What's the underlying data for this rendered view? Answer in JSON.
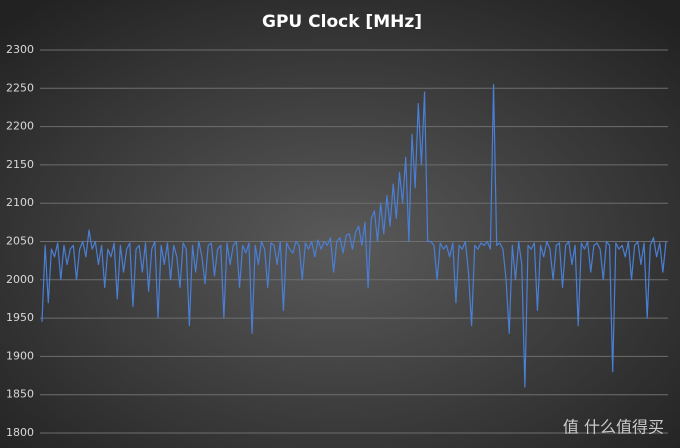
{
  "chart_data": {
    "type": "line",
    "title": "GPU Clock [MHz]",
    "watermark": "值 什么值得买",
    "color": "#4a7fd6",
    "grid": true,
    "ylim": [
      1800,
      2300
    ],
    "yticks": [
      1800,
      1850,
      1900,
      1950,
      2000,
      2050,
      2100,
      2150,
      2200,
      2250,
      2300
    ],
    "values": [
      1945,
      2045,
      1970,
      2040,
      2030,
      2048,
      2000,
      2045,
      2020,
      2040,
      2045,
      2000,
      2040,
      2050,
      2030,
      2065,
      2040,
      2050,
      2020,
      2045,
      1990,
      2040,
      2030,
      2048,
      1975,
      2045,
      2010,
      2040,
      2048,
      1965,
      2040,
      2045,
      2010,
      2048,
      1985,
      2040,
      2050,
      1950,
      2045,
      2020,
      2048,
      2000,
      2045,
      2030,
      1990,
      2048,
      2040,
      1940,
      2045,
      2010,
      2050,
      2030,
      1995,
      2045,
      2048,
      2005,
      2040,
      2045,
      1950,
      2048,
      2020,
      2045,
      2050,
      1990,
      2045,
      2035,
      2048,
      1930,
      2045,
      2020,
      2050,
      2040,
      1990,
      2048,
      2045,
      2020,
      2050,
      1960,
      2048,
      2040,
      2035,
      2050,
      2045,
      2000,
      2048,
      2040,
      2050,
      2030,
      2052,
      2040,
      2050,
      2045,
      2055,
      2010,
      2050,
      2055,
      2035,
      2058,
      2060,
      2040,
      2062,
      2070,
      2045,
      2075,
      1990,
      2080,
      2090,
      2050,
      2100,
      2060,
      2110,
      2070,
      2125,
      2080,
      2140,
      2100,
      2160,
      2050,
      2190,
      2120,
      2230,
      2150,
      2245,
      2050,
      2050,
      2045,
      2000,
      2048,
      2040,
      2045,
      2030,
      2048,
      1970,
      2045,
      2040,
      2050,
      2010,
      1940,
      2045,
      2040,
      2048,
      2045,
      2050,
      2040,
      2255,
      2045,
      2048,
      2040,
      2000,
      1930,
      2045,
      2000,
      2050,
      2020,
      1860,
      2045,
      2040,
      2048,
      1960,
      2045,
      2030,
      2050,
      2040,
      2000,
      2045,
      2048,
      1990,
      2045,
      2050,
      2020,
      2045,
      1940,
      2048,
      2040,
      2050,
      2010,
      2045,
      2048,
      2040,
      2000,
      2050,
      2045,
      1880,
      2048,
      2040,
      2045,
      2030,
      2050,
      2000,
      2045,
      2050,
      2020,
      2048,
      1950,
      2045,
      2055,
      2030,
      2048,
      2010,
      2050
    ]
  }
}
